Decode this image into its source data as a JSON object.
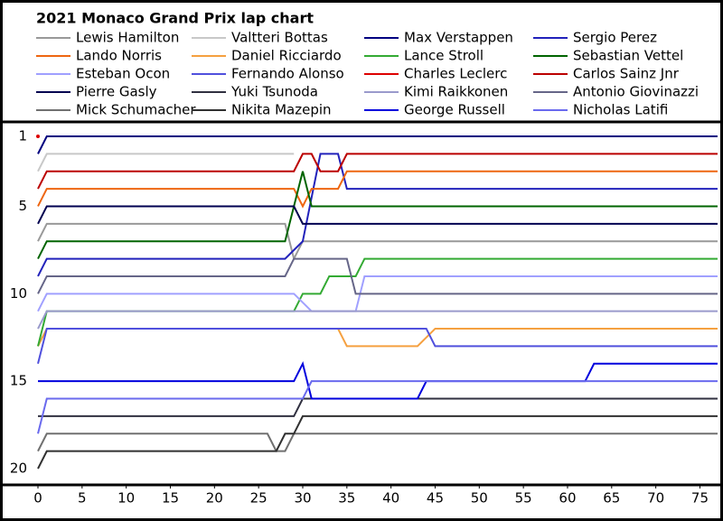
{
  "chart_data": {
    "type": "line",
    "title": "2021 Monaco Grand Prix lap chart",
    "xlim": [
      0,
      77
    ],
    "xticks": [
      0,
      5,
      10,
      15,
      20,
      25,
      30,
      35,
      40,
      45,
      50,
      55,
      60,
      65,
      70,
      75
    ],
    "ylim": [
      1,
      20
    ],
    "yticks": [
      1,
      5,
      10,
      15,
      20
    ],
    "invert_y": true,
    "grid": false,
    "series": [
      {
        "name": "Lewis Hamilton",
        "color": "#999999",
        "x": [
          0,
          1,
          28,
          29,
          30,
          77
        ],
        "values": [
          7,
          6,
          6,
          8,
          7,
          7
        ]
      },
      {
        "name": "Valtteri Bottas",
        "color": "#c8c8c8",
        "x": [
          0,
          1,
          29
        ],
        "values": [
          3,
          2,
          2
        ]
      },
      {
        "name": "Max Verstappen",
        "color": "#000080",
        "x": [
          0,
          1,
          77
        ],
        "values": [
          2,
          1,
          1
        ]
      },
      {
        "name": "Sergio Perez",
        "color": "#2222bb",
        "x": [
          0,
          1,
          28,
          30,
          32,
          34,
          35,
          77
        ],
        "values": [
          9,
          8,
          8,
          7,
          2,
          2,
          4,
          4
        ]
      },
      {
        "name": "Lando Norris",
        "color": "#ee6611",
        "x": [
          0,
          1,
          29,
          30,
          31,
          34,
          35,
          77
        ],
        "values": [
          5,
          4,
          4,
          5,
          4,
          4,
          3,
          3
        ]
      },
      {
        "name": "Daniel Ricciardo",
        "color": "#f5a040",
        "x": [
          0,
          1,
          34,
          35,
          43,
          45,
          77
        ],
        "values": [
          13,
          12,
          12,
          13,
          13,
          12,
          12
        ]
      },
      {
        "name": "Lance Stroll",
        "color": "#33aa33",
        "x": [
          0,
          1,
          29,
          30,
          32,
          33,
          36,
          37,
          77
        ],
        "values": [
          13,
          11,
          11,
          10,
          10,
          9,
          9,
          8,
          8
        ]
      },
      {
        "name": "Sebastian Vettel",
        "color": "#006400",
        "x": [
          0,
          1,
          28,
          30,
          31,
          77
        ],
        "values": [
          8,
          7,
          7,
          3,
          5,
          5
        ]
      },
      {
        "name": "Esteban Ocon",
        "color": "#a0a0ff",
        "x": [
          0,
          1,
          29,
          31,
          36,
          37,
          77
        ],
        "values": [
          11,
          10,
          10,
          11,
          11,
          9,
          9
        ]
      },
      {
        "name": "Fernando Alonso",
        "color": "#5050dd",
        "x": [
          0,
          1,
          29,
          31,
          44,
          45,
          77
        ],
        "values": [
          14,
          12,
          12,
          12,
          12,
          13,
          13
        ]
      },
      {
        "name": "Charles Leclerc",
        "color": "#dd0000",
        "x": [
          0
        ],
        "values": [
          1
        ]
      },
      {
        "name": "Carlos Sainz Jnr",
        "color": "#bb0000",
        "x": [
          0,
          1,
          29,
          30,
          31,
          32,
          34,
          35,
          77
        ],
        "values": [
          4,
          3,
          3,
          2,
          2,
          3,
          3,
          2,
          2
        ]
      },
      {
        "name": "Pierre Gasly",
        "color": "#000050",
        "x": [
          0,
          1,
          29,
          30,
          77
        ],
        "values": [
          6,
          5,
          5,
          6,
          6
        ]
      },
      {
        "name": "Yuki Tsunoda",
        "color": "#303040",
        "x": [
          0,
          1,
          29,
          30,
          77
        ],
        "values": [
          17,
          17,
          17,
          16,
          16
        ]
      },
      {
        "name": "Kimi Raikkonen",
        "color": "#9a9acc",
        "x": [
          0,
          1,
          77
        ],
        "values": [
          12,
          11,
          11
        ]
      },
      {
        "name": "Antonio Giovinazzi",
        "color": "#666688",
        "x": [
          0,
          1,
          28,
          29,
          35,
          36,
          77
        ],
        "values": [
          10,
          9,
          9,
          8,
          8,
          10,
          10
        ]
      },
      {
        "name": "Mick Schumacher",
        "color": "#707070",
        "x": [
          0,
          1,
          26,
          27,
          28,
          29,
          77
        ],
        "values": [
          19,
          18,
          18,
          19,
          19,
          18,
          18
        ]
      },
      {
        "name": "Nikita Mazepin",
        "color": "#303030",
        "x": [
          0,
          1,
          27,
          28,
          29,
          30,
          77
        ],
        "values": [
          20,
          19,
          19,
          18,
          18,
          17,
          17
        ]
      },
      {
        "name": "George Russell",
        "color": "#0000dd",
        "x": [
          0,
          1,
          29,
          30,
          31,
          43,
          44,
          62,
          63,
          77
        ],
        "values": [
          15,
          15,
          15,
          14,
          16,
          16,
          15,
          15,
          14,
          14
        ]
      },
      {
        "name": "Nicholas Latifi",
        "color": "#6a6aee",
        "x": [
          0,
          1,
          30,
          31,
          77
        ],
        "values": [
          18,
          16,
          16,
          15,
          15
        ]
      }
    ]
  }
}
